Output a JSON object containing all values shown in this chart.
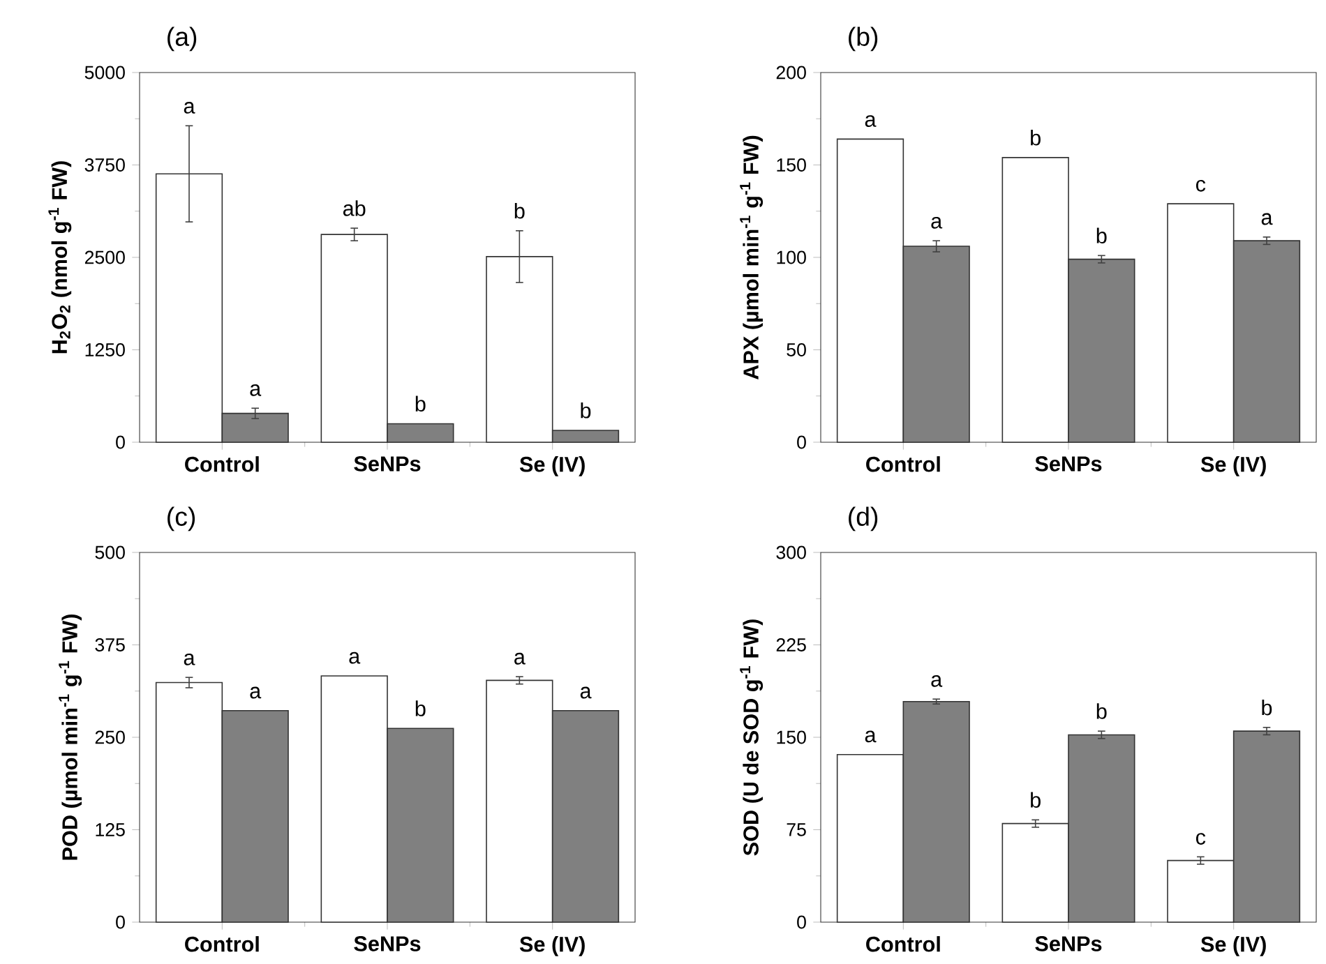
{
  "chart_data": [
    {
      "type": "bar",
      "title": "(a)",
      "ylabel": "H$_{2}$O$_{2}$ (nmol g$^{-1}$ FW)",
      "categories": [
        "Control",
        "SeNPs",
        "Se (IV)"
      ],
      "ylim": [
        0,
        5000
      ],
      "yticks": [
        0,
        1250,
        2500,
        3750,
        5000
      ],
      "series": [
        {
          "color": "#ffffff",
          "values": [
            3630,
            2810,
            2510
          ],
          "errors": [
            650,
            85,
            350
          ],
          "value_labels": [
            "a",
            "ab",
            "b"
          ]
        },
        {
          "color": "#808080",
          "values": [
            390,
            250,
            160
          ],
          "errors": [
            70,
            null,
            null
          ],
          "value_labels": [
            "a",
            "b",
            "b"
          ]
        }
      ]
    },
    {
      "type": "bar",
      "title": "(b)",
      "ylabel": "APX (µmol min$^{-1}$ g$^{-1}$ FW)",
      "categories": [
        "Control",
        "SeNPs",
        "Se (IV)"
      ],
      "ylim": [
        0,
        200
      ],
      "yticks": [
        0,
        50,
        100,
        150,
        200
      ],
      "series": [
        {
          "color": "#ffffff",
          "values": [
            164,
            154,
            129
          ],
          "value_labels": [
            "a",
            "b",
            "c"
          ]
        },
        {
          "color": "#808080",
          "values": [
            106,
            99,
            109
          ],
          "errors": [
            3,
            2,
            2
          ],
          "value_labels": [
            "a",
            "b",
            "a"
          ]
        }
      ]
    },
    {
      "type": "bar",
      "title": "(c)",
      "ylabel": "POD (µmol min$^{-1}$ g$^{-1}$ FW)",
      "categories": [
        "Control",
        "SeNPs",
        "Se (IV)"
      ],
      "ylim": [
        0,
        500
      ],
      "yticks": [
        0,
        125,
        250,
        375,
        500
      ],
      "series": [
        {
          "color": "#ffffff",
          "values": [
            324,
            333,
            327
          ],
          "errors": [
            7,
            null,
            5
          ],
          "value_labels": [
            "a",
            "a",
            "a"
          ]
        },
        {
          "color": "#808080",
          "values": [
            286,
            262,
            286
          ],
          "value_labels": [
            "a",
            "b",
            "a"
          ]
        }
      ]
    },
    {
      "type": "bar",
      "title": "(d)",
      "ylabel": "SOD (U de SOD g$^{-1}$ FW)",
      "categories": [
        "Control",
        "SeNPs",
        "Se (IV)"
      ],
      "ylim": [
        0,
        300
      ],
      "yticks": [
        0,
        75,
        150,
        225,
        300
      ],
      "series": [
        {
          "color": "#ffffff",
          "values": [
            136,
            80,
            50
          ],
          "errors": [
            null,
            3,
            3
          ],
          "value_labels": [
            "a",
            "b",
            "c"
          ]
        },
        {
          "color": "#808080",
          "values": [
            179,
            152,
            155
          ],
          "errors": [
            2,
            3,
            3
          ],
          "value_labels": [
            "a",
            "b",
            "b"
          ]
        }
      ]
    }
  ]
}
